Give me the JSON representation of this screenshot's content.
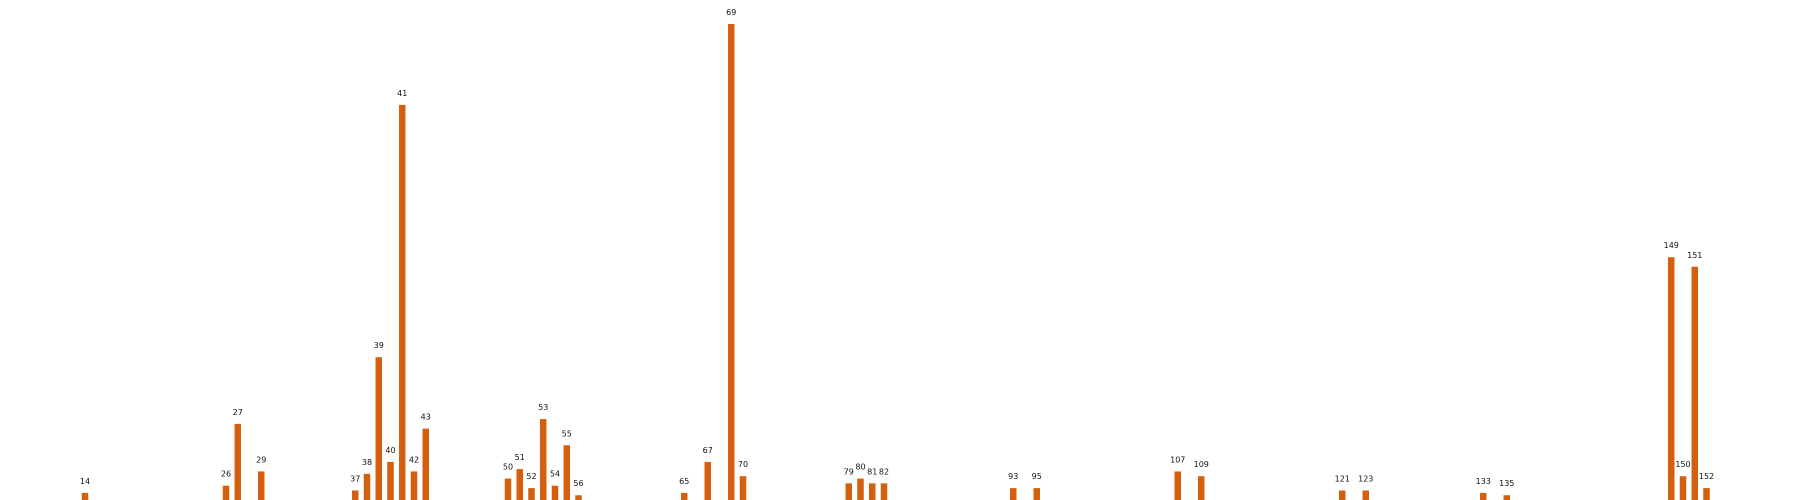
{
  "chart_data": {
    "type": "bar",
    "x_axis": "linear",
    "xlim": [
      0,
      175
    ],
    "ylim": [
      0,
      200
    ],
    "grid": false,
    "axes_visible": false,
    "bar_color": "#d4600e",
    "label_color": "#111111",
    "points": [
      {
        "x": 14,
        "y": 3,
        "label": "14"
      },
      {
        "x": 26,
        "y": 6,
        "label": "26"
      },
      {
        "x": 27,
        "y": 32,
        "label": "27"
      },
      {
        "x": 29,
        "y": 12,
        "label": "29"
      },
      {
        "x": 37,
        "y": 4,
        "label": "37"
      },
      {
        "x": 38,
        "y": 11,
        "label": "38"
      },
      {
        "x": 39,
        "y": 60,
        "label": "39"
      },
      {
        "x": 40,
        "y": 16,
        "label": "40"
      },
      {
        "x": 41,
        "y": 166,
        "label": "41"
      },
      {
        "x": 42,
        "y": 12,
        "label": "42"
      },
      {
        "x": 43,
        "y": 30,
        "label": "43"
      },
      {
        "x": 50,
        "y": 9,
        "label": "50"
      },
      {
        "x": 51,
        "y": 13,
        "label": "51"
      },
      {
        "x": 52,
        "y": 5,
        "label": "52"
      },
      {
        "x": 53,
        "y": 34,
        "label": "53"
      },
      {
        "x": 54,
        "y": 6,
        "label": "54"
      },
      {
        "x": 55,
        "y": 23,
        "label": "55"
      },
      {
        "x": 56,
        "y": 2,
        "label": "56"
      },
      {
        "x": 65,
        "y": 3,
        "label": "65"
      },
      {
        "x": 67,
        "y": 16,
        "label": "67"
      },
      {
        "x": 69,
        "y": 200,
        "label": "69"
      },
      {
        "x": 70,
        "y": 10,
        "label": "70"
      },
      {
        "x": 79,
        "y": 7,
        "label": "79"
      },
      {
        "x": 80,
        "y": 9,
        "label": "80"
      },
      {
        "x": 81,
        "y": 7,
        "label": "81"
      },
      {
        "x": 82,
        "y": 7,
        "label": "82"
      },
      {
        "x": 93,
        "y": 5,
        "label": "93"
      },
      {
        "x": 95,
        "y": 5,
        "label": "95"
      },
      {
        "x": 107,
        "y": 12,
        "label": "107"
      },
      {
        "x": 109,
        "y": 10,
        "label": "109"
      },
      {
        "x": 121,
        "y": 4,
        "label": "121"
      },
      {
        "x": 123,
        "y": 4,
        "label": "123"
      },
      {
        "x": 133,
        "y": 3,
        "label": "133"
      },
      {
        "x": 135,
        "y": 2,
        "label": "135"
      },
      {
        "x": 149,
        "y": 102,
        "label": "149"
      },
      {
        "x": 150,
        "y": 10,
        "label": "150"
      },
      {
        "x": 151,
        "y": 98,
        "label": "151"
      },
      {
        "x": 152,
        "y": 5,
        "label": "152"
      }
    ]
  }
}
